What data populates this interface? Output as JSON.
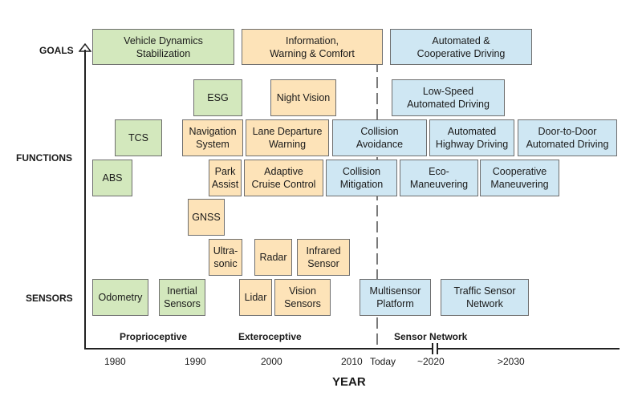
{
  "row_labels": {
    "goals": "GOALS",
    "functions": "FUNCTIONS",
    "sensors": "SENSORS"
  },
  "goals": {
    "vehicle_dynamics": "Vehicle Dynamics\nStabilization",
    "information_warning": "Information,\nWarning & Comfort",
    "automated_cooperative": "Automated &\nCooperative Driving"
  },
  "functions": {
    "esg": "ESG",
    "night_vision": "Night Vision",
    "low_speed": "Low-Speed\nAutomated Driving",
    "tcs": "TCS",
    "navigation": "Navigation\nSystem",
    "lane_departure": "Lane Departure\nWarning",
    "collision_avoidance": "Collision\nAvoidance",
    "automated_highway": "Automated\nHighway Driving",
    "door_to_door": "Door-to-Door\nAutomated Driving",
    "abs": "ABS",
    "park_assist": "Park\nAssist",
    "adaptive_cruise": "Adaptive\nCruise Control",
    "collision_mitigation": "Collision\nMitigation",
    "eco_maneuvering": "Eco-\nManeuvering",
    "cooperative_maneuvering": "Cooperative\nManeuvering"
  },
  "sensors": {
    "gnss": "GNSS",
    "ultrasonic": "Ultra-\nsonic",
    "radar": "Radar",
    "infrared": "Infrared\nSensor",
    "odometry": "Odometry",
    "inertial": "Inertial\nSensors",
    "lidar": "Lidar",
    "vision": "Vision\nSensors",
    "multisensor": "Multisensor\nPlatform",
    "traffic_sensor": "Traffic Sensor\nNetwork"
  },
  "group_labels": {
    "proprioceptive": "Proprioceptive",
    "exteroceptive": "Exteroceptive",
    "sensor_network": "Sensor Network"
  },
  "x_axis": {
    "ticks": [
      "1980",
      "1990",
      "2000",
      "2010",
      "Today",
      "~2020",
      ">2030"
    ],
    "title": "YEAR"
  },
  "colors": {
    "green": "#d3e8bd",
    "orange": "#fde3b8",
    "blue": "#cfe7f3"
  }
}
